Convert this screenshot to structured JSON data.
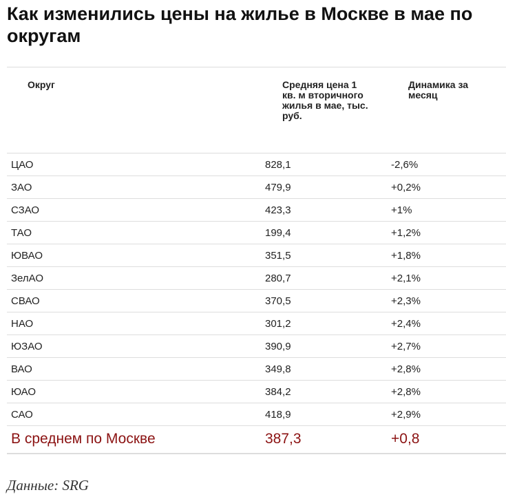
{
  "header": {
    "title": "Как изменились цены на жилье в Москве в мае по округам"
  },
  "table": {
    "columns": [
      "Округ",
      "Средняя цена 1 кв. м вторичного жилья в мае, тыс. руб.",
      "Динамика за месяц"
    ],
    "rows": [
      [
        "ЦАО",
        "828,1",
        "-2,6%"
      ],
      [
        "ЗАО",
        "479,9",
        "+0,2%"
      ],
      [
        "СЗАО",
        "423,3",
        "+1%"
      ],
      [
        "ТАО",
        "199,4",
        "+1,2%"
      ],
      [
        "ЮВАО",
        "351,5",
        "+1,8%"
      ],
      [
        "ЗелАО",
        "280,7",
        "+2,1%"
      ],
      [
        "СВАО",
        "370,5",
        "+2,3%"
      ],
      [
        "НАО",
        "301,2",
        "+2,4%"
      ],
      [
        "ЮЗАО",
        "390,9",
        "+2,7%"
      ],
      [
        "ВАО",
        "349,8",
        "+2,8%"
      ],
      [
        "ЮАО",
        "384,2",
        "+2,8%"
      ],
      [
        "САО",
        "418,9",
        "+2,9%"
      ]
    ],
    "total": [
      "В среднем по Москве",
      "387,3",
      "+0,8"
    ]
  },
  "source": "Данные: SRG"
}
